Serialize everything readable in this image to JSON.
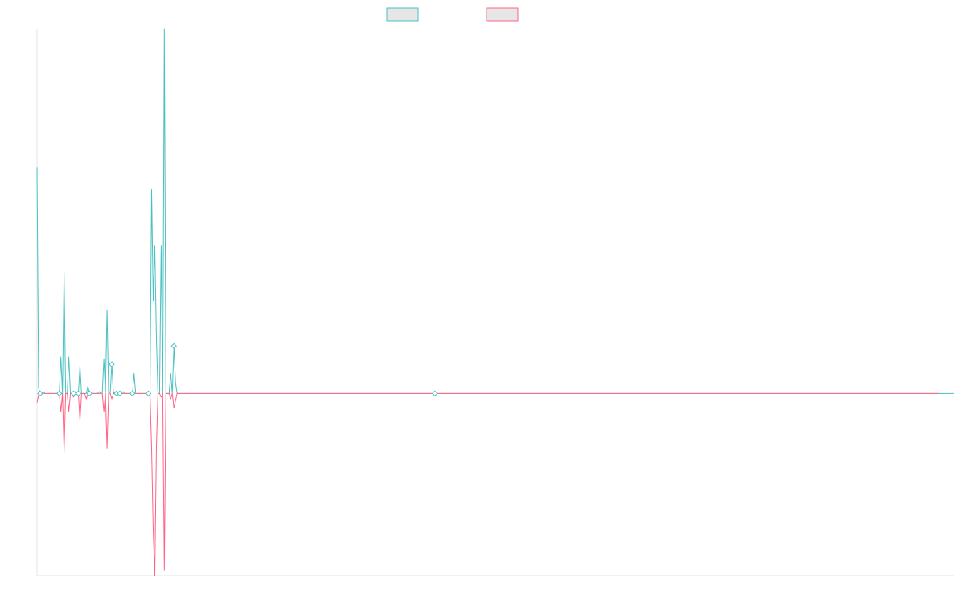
{
  "chart_data": {
    "type": "line",
    "title": "",
    "xlabel": "",
    "ylabel": "",
    "grid": false,
    "legend_position": "top-center",
    "ylim": [
      -1.0,
      2.0
    ],
    "series": [
      {
        "color": "#4bc0c0",
        "values": [
          1.24,
          0.03,
          0,
          0,
          0.01,
          0,
          0,
          0,
          0,
          0,
          0,
          0,
          0,
          0,
          0,
          0.2,
          0,
          0.66,
          0,
          0,
          0.2,
          0,
          0,
          0,
          0.01,
          0,
          0,
          0.15,
          0,
          0,
          0,
          0,
          0.04,
          0,
          0,
          0,
          0,
          0,
          0,
          0.01,
          0,
          0,
          0.19,
          0,
          0.46,
          0,
          0,
          0.16,
          0,
          0.01,
          0,
          0,
          0,
          0,
          0.01,
          0,
          0,
          0,
          0,
          0,
          0,
          0.11,
          0,
          0,
          0,
          0,
          0,
          0,
          0,
          0,
          0,
          0,
          1.12,
          0.51,
          0.81,
          0.31,
          0,
          0,
          0.81,
          0,
          2.0,
          0,
          0,
          0,
          0.11,
          0,
          0.26,
          0.06,
          0,
          0,
          0,
          0,
          0,
          0,
          0,
          0,
          0,
          0,
          0,
          0,
          0,
          0,
          0,
          0,
          0,
          0,
          0,
          0,
          0,
          0,
          0,
          0,
          0,
          0,
          0,
          0,
          0,
          0,
          0,
          0,
          0,
          0,
          0,
          0,
          0,
          0,
          0,
          0,
          0,
          0,
          0,
          0,
          0,
          0,
          0,
          0,
          0,
          0,
          0,
          0,
          0,
          0,
          0,
          0,
          0,
          0,
          0,
          0,
          0,
          0,
          0,
          0,
          0,
          0,
          0,
          0,
          0,
          0,
          0,
          0,
          0,
          0,
          0,
          0,
          0,
          0,
          0,
          0,
          0,
          0,
          0,
          0,
          0,
          0,
          0,
          0,
          0,
          0,
          0,
          0,
          0,
          0,
          0,
          0,
          0,
          0,
          0,
          0,
          0,
          0,
          0,
          0,
          0,
          0,
          0,
          0,
          0,
          0,
          0,
          0,
          0,
          0,
          0,
          0,
          0,
          0,
          0,
          0,
          0,
          0,
          0,
          0,
          0,
          0,
          0,
          0,
          0,
          0,
          0,
          0,
          0,
          0,
          0,
          0,
          0,
          0,
          0,
          0,
          0,
          0,
          0,
          0,
          0,
          0,
          0,
          0,
          0,
          0,
          0,
          0,
          0,
          0,
          0,
          0,
          0,
          0,
          0,
          0,
          0,
          0,
          0,
          0,
          0,
          0,
          0,
          0,
          0,
          0,
          0,
          0,
          0,
          0,
          0,
          0,
          0,
          0,
          0,
          0,
          0,
          0,
          0,
          0,
          0,
          0,
          0,
          0,
          0,
          0,
          0,
          0,
          0,
          0,
          0,
          0,
          0,
          0,
          0,
          0,
          0,
          0,
          0,
          0,
          0,
          0,
          0,
          0,
          0,
          0,
          0,
          0,
          0,
          0,
          0,
          0,
          0,
          0,
          0,
          0,
          0,
          0,
          0,
          0,
          0,
          0,
          0,
          0,
          0,
          0,
          0,
          0,
          0,
          0,
          0,
          0,
          0,
          0,
          0,
          0,
          0,
          0,
          0,
          0,
          0,
          0,
          0,
          0,
          0,
          0,
          0,
          0,
          0,
          0,
          0,
          0,
          0,
          0,
          0,
          0,
          0,
          0,
          0,
          0,
          0,
          0,
          0,
          0,
          0,
          0,
          0,
          0,
          0,
          0,
          0,
          0,
          0,
          0,
          0,
          0,
          0,
          0,
          0,
          0,
          0,
          0,
          0,
          0,
          0,
          0,
          0,
          0,
          0,
          0,
          0,
          0,
          0,
          0,
          0,
          0,
          0,
          0,
          0,
          0,
          0,
          0,
          0,
          0,
          0,
          0,
          0,
          0,
          0,
          0,
          0,
          0,
          0,
          0,
          0,
          0,
          0,
          0,
          0,
          0,
          0,
          0,
          0,
          0,
          0,
          0,
          0,
          0,
          0,
          0,
          0,
          0,
          0,
          0,
          0,
          0,
          0,
          0,
          0,
          0,
          0,
          0,
          0,
          0,
          0,
          0,
          0,
          0,
          0,
          0,
          0,
          0,
          0,
          0,
          0,
          0,
          0,
          0,
          0,
          0,
          0,
          0,
          0,
          0,
          0,
          0,
          0,
          0,
          0,
          0,
          0,
          0,
          0,
          0,
          0,
          0,
          0,
          0,
          0,
          0,
          0,
          0,
          0,
          0,
          0,
          0,
          0,
          0,
          0,
          0,
          0,
          0,
          0,
          0,
          0,
          0,
          0,
          0,
          0,
          0,
          0,
          0,
          0,
          0,
          0,
          0,
          0,
          0,
          0,
          0,
          0,
          0,
          0,
          0,
          0,
          0,
          0,
          0,
          0,
          0,
          0,
          0,
          0,
          0,
          0,
          0,
          0,
          0,
          0,
          0,
          0,
          0,
          0,
          0,
          0,
          0,
          0,
          0,
          0,
          0,
          0,
          0,
          0,
          0,
          0,
          0,
          0,
          0,
          0,
          0,
          0,
          0,
          0,
          0,
          0,
          0,
          0,
          0,
          0,
          0,
          0,
          0,
          0,
          0,
          0,
          0,
          0,
          0,
          0,
          0,
          0,
          0,
          0,
          0,
          0,
          0,
          0,
          0,
          0,
          0,
          0,
          0,
          0,
          0,
          0
        ]
      },
      {
        "color": "#ff6384",
        "values": [
          -0.05,
          -0.01,
          0,
          0,
          0,
          0,
          0,
          0,
          0,
          0,
          0,
          0,
          0,
          0,
          0,
          -0.1,
          0,
          -0.32,
          0,
          0,
          -0.1,
          0,
          0,
          -0.02,
          0,
          0,
          0,
          -0.15,
          0,
          0,
          0,
          -0.03,
          0,
          0,
          0,
          0,
          0,
          0,
          0,
          0,
          0,
          0,
          -0.1,
          0,
          -0.3,
          0,
          0,
          -0.03,
          0,
          0,
          0,
          0,
          0,
          0,
          0,
          0,
          0,
          0,
          0,
          0,
          0,
          0,
          0,
          0,
          0,
          0,
          0,
          0,
          0,
          0,
          0,
          0,
          -0.3,
          -0.75,
          -1.0,
          -0.3,
          0,
          0,
          -0.02,
          0,
          -0.97,
          0,
          0,
          0,
          -0.03,
          0,
          -0.08,
          -0.04,
          0,
          0,
          0,
          0,
          0,
          0,
          0,
          0,
          0,
          0,
          0,
          0,
          0,
          0,
          0,
          0,
          0,
          0,
          0,
          0,
          0,
          0,
          0,
          0,
          0,
          0,
          0,
          0,
          0,
          0,
          0,
          0,
          0,
          0,
          0,
          0,
          0,
          0,
          0,
          0,
          0,
          0,
          0,
          0,
          0,
          0,
          0,
          0,
          0,
          0,
          0,
          0,
          0,
          0,
          0,
          0,
          0,
          0,
          0,
          0,
          0,
          0,
          0,
          0,
          0,
          0,
          0,
          0,
          0,
          0,
          0,
          0,
          0,
          0,
          0,
          0,
          0,
          0,
          0,
          0,
          0,
          0,
          0,
          0,
          0,
          0,
          0,
          0,
          0,
          0,
          0,
          0,
          0,
          0,
          0,
          0,
          0,
          0,
          0,
          0,
          0,
          0,
          0,
          0,
          0,
          0,
          0,
          0,
          0,
          0,
          0,
          0,
          0,
          0,
          0,
          0,
          0,
          0,
          0,
          0,
          0,
          0,
          0,
          0,
          0,
          0,
          0,
          0,
          0,
          0,
          0,
          0,
          0,
          0,
          0,
          0,
          0,
          0,
          0,
          0,
          0,
          0,
          0,
          0,
          0,
          0,
          0,
          0,
          0,
          0,
          0,
          0,
          0,
          0,
          0,
          0,
          0,
          0,
          0,
          0,
          0,
          0,
          0,
          0,
          0,
          0,
          0,
          0,
          0,
          0,
          0,
          0,
          0,
          0,
          0,
          0,
          0,
          0,
          0,
          0,
          0,
          0,
          0,
          0,
          0,
          0,
          0,
          0,
          0,
          0,
          0,
          0,
          0,
          0,
          0,
          0,
          0,
          0,
          0,
          0,
          0,
          0,
          0,
          0,
          0,
          0,
          0,
          0,
          0,
          0,
          0,
          0,
          0,
          0,
          0,
          0,
          0,
          0,
          0,
          0,
          0,
          0,
          0,
          0,
          0,
          0,
          0,
          0,
          0,
          0,
          0,
          0,
          0,
          0,
          0,
          0,
          0,
          0,
          0,
          0,
          0,
          0,
          0,
          0,
          0,
          0,
          0,
          0,
          0,
          0,
          0,
          0,
          0,
          0,
          0,
          0,
          0,
          0,
          0,
          0,
          0,
          0,
          0,
          0,
          0,
          0,
          0,
          0,
          0,
          0,
          0,
          0,
          0,
          0,
          0,
          0,
          0,
          0,
          0,
          0,
          0,
          0,
          0,
          0,
          0,
          0,
          0,
          0,
          0,
          0,
          0,
          0,
          0,
          0,
          0,
          0,
          0,
          0,
          0,
          0,
          0,
          0,
          0,
          0,
          0,
          0,
          0,
          0,
          0,
          0,
          0,
          0,
          0,
          0,
          0,
          0,
          0,
          0,
          0,
          0,
          0,
          0,
          0,
          0,
          0,
          0,
          0,
          0,
          0,
          0,
          0,
          0,
          0,
          0,
          0,
          0,
          0,
          0,
          0,
          0,
          0,
          0,
          0,
          0,
          0,
          0,
          0,
          0,
          0,
          0,
          0,
          0,
          0,
          0,
          0,
          0,
          0,
          0,
          0,
          0,
          0,
          0,
          0,
          0,
          0,
          0,
          0,
          0,
          0,
          0,
          0,
          0,
          0,
          0,
          0,
          0,
          0,
          0,
          0,
          0,
          0,
          0,
          0,
          0,
          0,
          0,
          0,
          0,
          0,
          0,
          0,
          0,
          0,
          0,
          0,
          0,
          0,
          0,
          0,
          0,
          0,
          0,
          0,
          0,
          0,
          0,
          0,
          0,
          0,
          0,
          0,
          0,
          0,
          0,
          0,
          0,
          0,
          0,
          0,
          0,
          0,
          0,
          0,
          0,
          0,
          0,
          0,
          0,
          0,
          0,
          0,
          0,
          0,
          0,
          0,
          0,
          0,
          0,
          0,
          0,
          0,
          0,
          0,
          0,
          0,
          0,
          0,
          0,
          0,
          0,
          0,
          0,
          0,
          0,
          0,
          0,
          0,
          0,
          0,
          0,
          0,
          0,
          0,
          0,
          0,
          0,
          0,
          0,
          0,
          0,
          0,
          0,
          0,
          0,
          0,
          0,
          0,
          0,
          0,
          0
        ]
      }
    ],
    "markers": [
      {
        "series": 0,
        "index": 2
      },
      {
        "series": 0,
        "index": 14
      },
      {
        "series": 0,
        "index": 23
      },
      {
        "series": 0,
        "index": 26
      },
      {
        "series": 0,
        "index": 33
      },
      {
        "series": 0,
        "index": 47
      },
      {
        "series": 0,
        "index": 50
      },
      {
        "series": 0,
        "index": 52
      },
      {
        "series": 0,
        "index": 60
      },
      {
        "series": 0,
        "index": 70
      },
      {
        "series": 0,
        "index": 86
      },
      {
        "series": 0,
        "index": 250
      }
    ]
  }
}
